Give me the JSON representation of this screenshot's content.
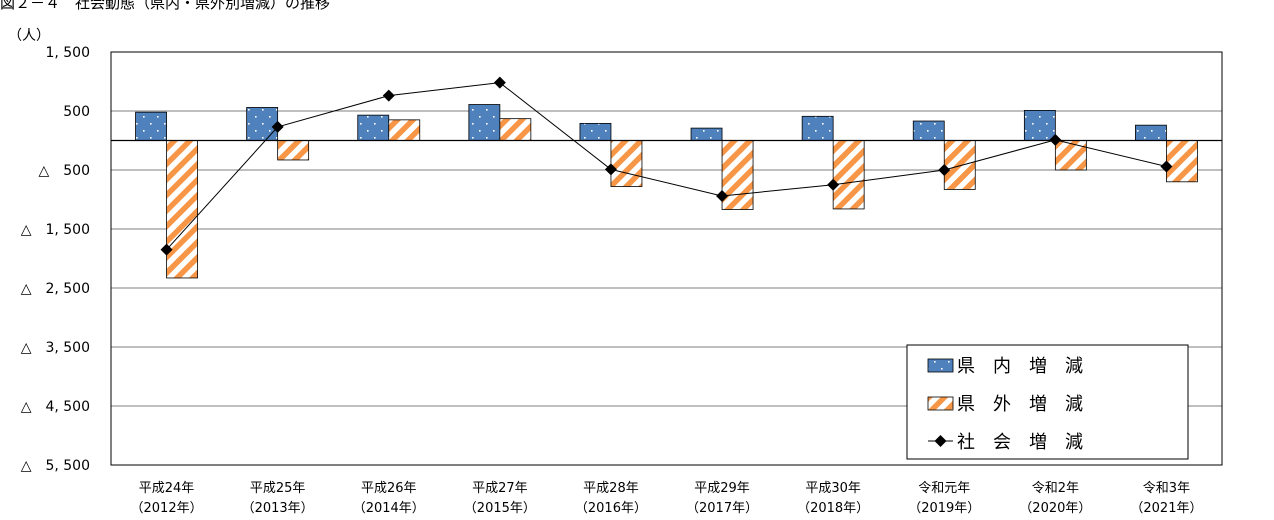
{
  "title": "図２－４　社会動態（県内・県外別増減）の推移",
  "chart_data": {
    "type": "bar",
    "ylabel": "（人）",
    "categories": [
      {
        "era": "平成24年",
        "year": "（2012年）"
      },
      {
        "era": "平成25年",
        "year": "（2013年）"
      },
      {
        "era": "平成26年",
        "year": "（2014年）"
      },
      {
        "era": "平成27年",
        "year": "（2015年）"
      },
      {
        "era": "平成28年",
        "year": "（2016年）"
      },
      {
        "era": "平成29年",
        "year": "（2017年）"
      },
      {
        "era": "平成30年",
        "year": "（2018年）"
      },
      {
        "era": "令和元年",
        "year": "（2019年）"
      },
      {
        "era": "令和2年",
        "year": "（2020年）"
      },
      {
        "era": "令和3年",
        "year": "（2021年）"
      }
    ],
    "ylim": [
      -5500,
      1500
    ],
    "yticks": [
      1500,
      500,
      -500,
      -1500,
      -2500,
      -3500,
      -4500,
      -5500
    ],
    "ytick_labels": [
      "1, 500",
      "500",
      "△　500",
      "△　1, 500",
      "△　2, 500",
      "△　3, 500",
      "△　4, 500",
      "△　5, 500"
    ],
    "grid": true,
    "legend_position": "bottom-right",
    "series": [
      {
        "name": "県　内　増　減",
        "kind": "bar",
        "color": "#4F81BD",
        "values": [
          480,
          560,
          430,
          610,
          290,
          210,
          410,
          330,
          510,
          260
        ]
      },
      {
        "name": "県　外　増　減",
        "kind": "bar",
        "color": "#F79646",
        "values": [
          -2330,
          -330,
          350,
          370,
          -780,
          -1170,
          -1160,
          -830,
          -500,
          -700
        ]
      },
      {
        "name": "社　会　増　減",
        "kind": "line",
        "color": "#000000",
        "values": [
          -1850,
          230,
          760,
          980,
          -490,
          -940,
          -750,
          -500,
          10,
          -440
        ]
      }
    ]
  }
}
